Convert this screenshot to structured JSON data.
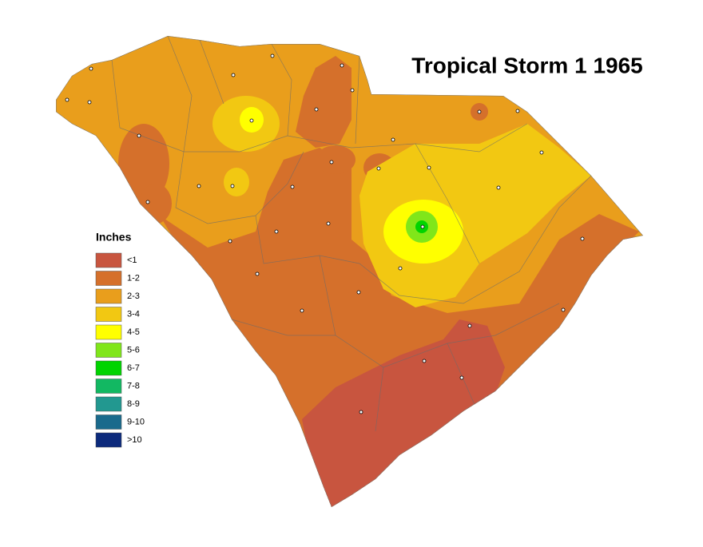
{
  "title": "Tropical Storm 1 1965",
  "legend": {
    "title": "Inches",
    "items": [
      {
        "label": "<1",
        "color": "#c8553f"
      },
      {
        "label": "1-2",
        "color": "#d5702b"
      },
      {
        "label": "2-3",
        "color": "#e99e1c"
      },
      {
        "label": "3-4",
        "color": "#f2c812"
      },
      {
        "label": "4-5",
        "color": "#ffff00"
      },
      {
        "label": "5-6",
        "color": "#80e61a"
      },
      {
        "label": "6-7",
        "color": "#00d400"
      },
      {
        "label": "7-8",
        "color": "#12b862"
      },
      {
        "label": "8-9",
        "color": "#229890"
      },
      {
        "label": "9-10",
        "color": "#1a6a8c"
      },
      {
        "label": ">10",
        "color": "#0c2a7c"
      }
    ]
  }
}
